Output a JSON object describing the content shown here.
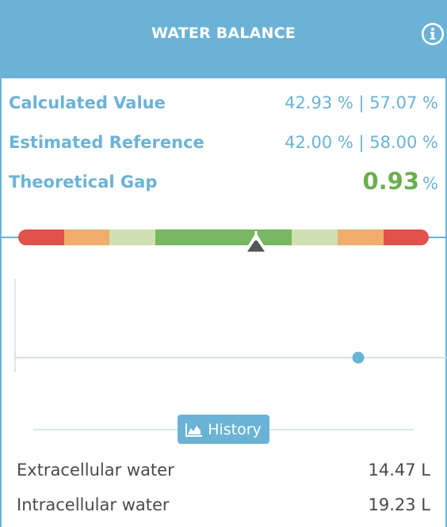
{
  "header": {
    "title": "WATER BALANCE",
    "info_icon": "info-icon",
    "background": "#6bb3d6"
  },
  "metrics": {
    "calculated_value": {
      "label": "Calculated Value",
      "value": "42.93 % | 57.07 %"
    },
    "estimated_reference": {
      "label": "Estimated Reference",
      "value": "42.00 % | 58.00 %"
    },
    "theoretical_gap": {
      "label": "Theoretical Gap",
      "value": "0.93",
      "unit": "%"
    }
  },
  "gauge": {
    "segment_colors": [
      "#e0524a",
      "#f0ad6c",
      "#cfe1b2",
      "#78b862",
      "#78b862",
      "#78b862",
      "#cfe1b2",
      "#f0ad6c",
      "#e0524a"
    ],
    "marker_icon": "triangle-up-icon"
  },
  "history_button": {
    "label": "History",
    "icon": "area-chart-icon"
  },
  "water": [
    {
      "label": "Extracellular water",
      "value": "14.47 L"
    },
    {
      "label": "Intracellular water",
      "value": "19.23 L"
    }
  ],
  "colors": {
    "accent": "#6bb3d6",
    "gap_green": "#6aaf4f",
    "text_dark": "#4a4a4a"
  }
}
